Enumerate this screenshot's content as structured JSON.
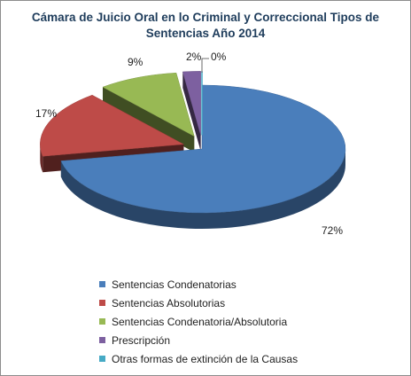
{
  "chart_data": {
    "type": "pie",
    "title": "Cámara de Juicio Oral en lo Criminal y Correccional Tipos de Sentencias Año 2014",
    "legend_position": "bottom",
    "exploded": true,
    "three_d": true,
    "slices": [
      {
        "name": "Sentencias Condenatorias",
        "value": 72,
        "label": "72%",
        "color": "#4a7ebb"
      },
      {
        "name": "Sentencias Absolutorias",
        "value": 17,
        "label": "17%",
        "color": "#be4b48"
      },
      {
        "name": "Sentencias Condenatoria/Absolutoria",
        "value": 9,
        "label": "9%",
        "color": "#98b954"
      },
      {
        "name": "Prescripción",
        "value": 2,
        "label": "2%",
        "color": "#7d60a0"
      },
      {
        "name": "Otras formas de extinción de la Causas",
        "value": 0,
        "label": "0%",
        "color": "#46aac5"
      }
    ]
  }
}
